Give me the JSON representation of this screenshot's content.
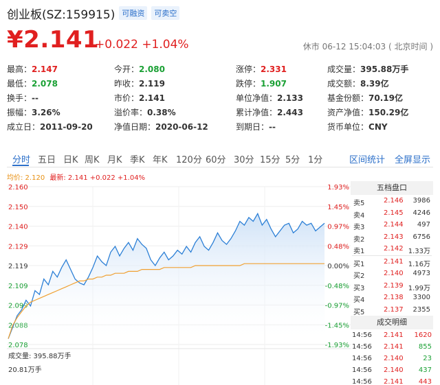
{
  "header": {
    "title": "创业板(SZ:159915)",
    "badge_margin": "可融资",
    "badge_short": "可卖空"
  },
  "quote": {
    "price": "¥2.141",
    "change": "+0.022 +1.04%",
    "status": "休市 06-12 15:04:03 ( 北京时间 )"
  },
  "stats": [
    [
      {
        "label": "最高：",
        "value": "2.147",
        "color": "red"
      },
      {
        "label": "今开：",
        "value": "2.080",
        "color": "green"
      },
      {
        "label": "涨停：",
        "value": "2.331",
        "color": "red"
      },
      {
        "label": "成交量：",
        "value": "395.88万手",
        "color": ""
      }
    ],
    [
      {
        "label": "最低：",
        "value": "2.078",
        "color": "green"
      },
      {
        "label": "昨收：",
        "value": "2.119",
        "color": ""
      },
      {
        "label": "跌停：",
        "value": "1.907",
        "color": "green"
      },
      {
        "label": "成交额：",
        "value": "8.39亿",
        "color": ""
      }
    ],
    [
      {
        "label": "换手：",
        "value": "--",
        "color": ""
      },
      {
        "label": "市价：",
        "value": "2.141",
        "color": ""
      },
      {
        "label": "单位净值：",
        "value": "2.133",
        "color": ""
      },
      {
        "label": "基金份额：",
        "value": "70.19亿",
        "color": ""
      }
    ],
    [
      {
        "label": "振幅：",
        "value": "3.26%",
        "color": ""
      },
      {
        "label": "溢价率：",
        "value": "0.38%",
        "color": ""
      },
      {
        "label": "累计净值：",
        "value": "2.443",
        "color": ""
      },
      {
        "label": "资产净值：",
        "value": "150.29亿",
        "color": ""
      }
    ],
    [
      {
        "label": "成立日：",
        "value": "2011-09-20",
        "color": ""
      },
      {
        "label": "净值日期：",
        "value": "2020-06-12",
        "color": ""
      },
      {
        "label": "到期日：",
        "value": "--",
        "color": ""
      },
      {
        "label": "货币单位：",
        "value": "CNY",
        "color": ""
      }
    ]
  ],
  "tabs": [
    "分时",
    "五日",
    "日K",
    "周K",
    "月K",
    "季K",
    "年K",
    "120分",
    "60分",
    "30分",
    "15分",
    "5分",
    "1分"
  ],
  "tabs_right": [
    "区间统计",
    "全屏显示"
  ],
  "legend": {
    "avg": "均价: 2.120",
    "latest": "最新: 2.141 +0.022 +1.04%"
  },
  "chart_data": {
    "type": "line",
    "price_ticks": [
      "2.160",
      "2.150",
      "2.140",
      "2.129",
      "2.119",
      "2.109",
      "2.099",
      "2.088",
      "2.078"
    ],
    "pct_ticks": [
      "1.93%",
      "1.45%",
      "0.97%",
      "0.48%",
      "0.00%",
      "-0.48%",
      "-0.97%",
      "-1.45%",
      "-1.93%"
    ],
    "ylim": [
      2.078,
      2.16
    ],
    "series": [
      {
        "name": "最新",
        "color": "#2b7fd6",
        "values": [
          2.081,
          2.087,
          2.093,
          2.096,
          2.101,
          2.098,
          2.106,
          2.104,
          2.112,
          2.109,
          2.116,
          2.113,
          2.118,
          2.122,
          2.117,
          2.112,
          2.11,
          2.109,
          2.113,
          2.118,
          2.124,
          2.121,
          2.119,
          2.126,
          2.129,
          2.124,
          2.128,
          2.131,
          2.127,
          2.133,
          2.13,
          2.128,
          2.122,
          2.119,
          2.123,
          2.126,
          2.122,
          2.124,
          2.127,
          2.125,
          2.129,
          2.126,
          2.131,
          2.134,
          2.129,
          2.127,
          2.131,
          2.136,
          2.132,
          2.13,
          2.133,
          2.137,
          2.142,
          2.14,
          2.144,
          2.142,
          2.146,
          2.14,
          2.143,
          2.138,
          2.134,
          2.137,
          2.14,
          2.141,
          2.136,
          2.138,
          2.142,
          2.14,
          2.141,
          2.137,
          2.139,
          2.141
        ]
      },
      {
        "name": "均价",
        "color": "#f0a030",
        "values": [
          2.081,
          2.088,
          2.092,
          2.095,
          2.098,
          2.1,
          2.101,
          2.102,
          2.103,
          2.104,
          2.105,
          2.106,
          2.107,
          2.108,
          2.109,
          2.11,
          2.111,
          2.111,
          2.112,
          2.112,
          2.113,
          2.113,
          2.114,
          2.114,
          2.115,
          2.115,
          2.115,
          2.116,
          2.116,
          2.116,
          2.117,
          2.117,
          2.117,
          2.117,
          2.117,
          2.118,
          2.118,
          2.118,
          2.118,
          2.118,
          2.118,
          2.118,
          2.119,
          2.119,
          2.119,
          2.119,
          2.119,
          2.119,
          2.119,
          2.119,
          2.119,
          2.119,
          2.119,
          2.12,
          2.12,
          2.12,
          2.12,
          2.12,
          2.12,
          2.12,
          2.12,
          2.12,
          2.12,
          2.12,
          2.12,
          2.12,
          2.12,
          2.12,
          2.12,
          2.12,
          2.12,
          2.12
        ]
      }
    ]
  },
  "volume": {
    "label": "成交量: 395.88万手",
    "sub": "20.81万手"
  },
  "orderbook": {
    "title": "五档盘口",
    "asks": [
      {
        "label": "卖5",
        "price": "2.146",
        "vol": "3986"
      },
      {
        "label": "卖4",
        "price": "2.145",
        "vol": "4246"
      },
      {
        "label": "卖3",
        "price": "2.144",
        "vol": "497"
      },
      {
        "label": "卖2",
        "price": "2.143",
        "vol": "6756"
      },
      {
        "label": "卖1",
        "price": "2.142",
        "vol": "1.33万"
      }
    ],
    "bids": [
      {
        "label": "买1",
        "price": "2.141",
        "vol": "1.16万"
      },
      {
        "label": "买2",
        "price": "2.140",
        "vol": "4973"
      },
      {
        "label": "买3",
        "price": "2.139",
        "vol": "1.99万"
      },
      {
        "label": "买4",
        "price": "2.138",
        "vol": "3300"
      },
      {
        "label": "买5",
        "price": "2.137",
        "vol": "2355"
      }
    ]
  },
  "trades": {
    "title": "成交明细",
    "rows": [
      {
        "time": "14:56",
        "price": "2.141",
        "vol": "1620",
        "color": "red"
      },
      {
        "time": "14:56",
        "price": "2.141",
        "vol": "855",
        "color": "green"
      },
      {
        "time": "14:56",
        "price": "2.140",
        "vol": "23",
        "color": "green"
      },
      {
        "time": "14:56",
        "price": "2.140",
        "vol": "437",
        "color": "green"
      },
      {
        "time": "14:56",
        "price": "2.141",
        "vol": "443",
        "color": "red"
      }
    ]
  }
}
